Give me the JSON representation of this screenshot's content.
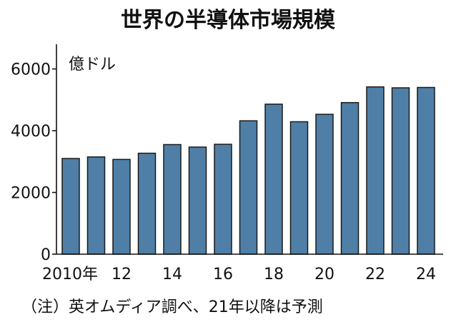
{
  "chart_data": {
    "type": "bar",
    "title": "世界の半導体市場規模",
    "unit_label": "億ドル",
    "categories": [
      "2010",
      "2011",
      "2012",
      "2013",
      "2014",
      "2015",
      "2016",
      "2017",
      "2018",
      "2019",
      "2020",
      "2021",
      "2022",
      "2023",
      "2024"
    ],
    "values": [
      3100,
      3150,
      3070,
      3270,
      3550,
      3470,
      3560,
      4320,
      4860,
      4290,
      4530,
      4910,
      5420,
      5390,
      5400
    ],
    "x_tick_labels": [
      "2010年",
      "12",
      "14",
      "16",
      "18",
      "20",
      "22",
      "24"
    ],
    "x_tick_indices": [
      0,
      2,
      4,
      6,
      8,
      10,
      12,
      14
    ],
    "y_ticks": [
      "0",
      "2000",
      "4000",
      "6000"
    ],
    "ylim": [
      0,
      6800
    ],
    "bar_color": "#4f7fa6",
    "grid": false,
    "legend": "none",
    "note": "（注）英オムディア調べ、21年以降は予測"
  }
}
